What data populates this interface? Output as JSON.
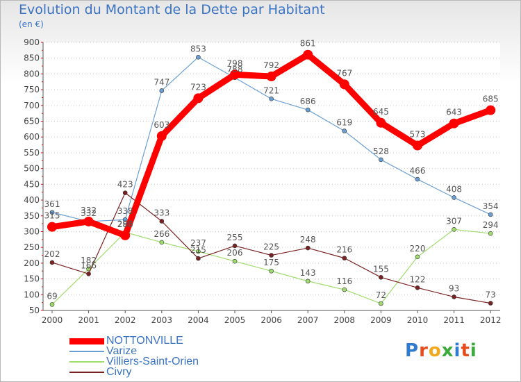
{
  "title": "Evolution du Montant de la Dette par Habitant",
  "subtitle": "(en €)",
  "logo": {
    "text": "Proxiti",
    "letter_colors": [
      "#2e7bd0",
      "#e84c1d",
      "#f2a81d",
      "#3aaa3a",
      "#2e7bd0",
      "#e84c1d",
      "#3aaa3a"
    ]
  },
  "chart_data": {
    "type": "line",
    "x": [
      "2000",
      "2001",
      "2002",
      "2003",
      "2004",
      "2005",
      "2006",
      "2007",
      "2008",
      "2009",
      "2010",
      "2011",
      "2012"
    ],
    "ylim": [
      50,
      900
    ],
    "yticks": [
      50,
      100,
      150,
      200,
      250,
      300,
      350,
      400,
      450,
      500,
      550,
      600,
      650,
      700,
      750,
      800,
      850,
      900
    ],
    "grid": "horizontal dotted",
    "legend": "bottom-left",
    "series": [
      {
        "name": "NOTTONVILLE",
        "color": "#ff0000",
        "values": [
          315,
          332,
          288,
          603,
          723,
          798,
          792,
          861,
          767,
          645,
          573,
          643,
          685
        ]
      },
      {
        "name": "Varize",
        "color": "#6a9fd4",
        "values": [
          361,
          332,
          338,
          747,
          853,
          788,
          721,
          686,
          619,
          528,
          466,
          408,
          354
        ]
      },
      {
        "name": "Villiers-Saint-Orien",
        "color": "#9edc6b",
        "values": [
          69,
          182,
          298,
          266,
          237,
          206,
          175,
          143,
          116,
          72,
          220,
          307,
          294
        ]
      },
      {
        "name": "Civry",
        "color": "#7a2222",
        "values": [
          202,
          166,
          423,
          333,
          215,
          255,
          225,
          248,
          216,
          155,
          122,
          93,
          73
        ]
      }
    ],
    "data_labels": [
      [
        "315",
        "332",
        "288",
        "603",
        "723",
        "798",
        "792",
        "861",
        "767",
        "645",
        "573",
        "643",
        "685"
      ],
      [
        "361",
        "332",
        "338",
        "747",
        "853",
        "788",
        "721",
        "686",
        "619",
        "528",
        "466",
        "408",
        "354"
      ],
      [
        "69",
        "182",
        "298",
        "266",
        "237",
        "206",
        "175",
        "143",
        "116",
        "72",
        "220",
        "307",
        "294"
      ],
      [
        "202",
        "166",
        "423",
        "333",
        "215",
        "255",
        "225",
        "248",
        "216",
        "155",
        "122",
        "93",
        "73"
      ]
    ]
  }
}
